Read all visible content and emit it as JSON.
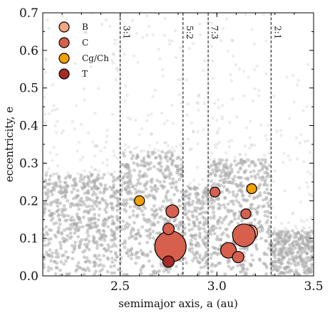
{
  "chart_data": {
    "type": "scatter",
    "xlabel": "semimajor axis, a (au)",
    "ylabel": "eccentricity, e",
    "xlim": [
      2.1,
      3.5
    ],
    "ylim": [
      0.0,
      0.7
    ],
    "xticks": [
      "2.5",
      "3.0",
      "3.5"
    ],
    "yticks": [
      "0.0",
      "0.1",
      "0.2",
      "0.3",
      "0.4",
      "0.5",
      "0.6",
      "0.7"
    ],
    "grid": false,
    "legend_position": "top-left",
    "background_population": {
      "color": "#a9a9a9",
      "note_visible": false
    },
    "resonances": [
      {
        "label": "3:1",
        "a": 2.5
      },
      {
        "label": "5:2",
        "a": 2.825
      },
      {
        "label": "7:3",
        "a": 2.955
      },
      {
        "label": "2:1",
        "a": 3.28
      }
    ],
    "series": [
      {
        "name": "B",
        "color": "#f4a582",
        "points": [
          {
            "a": 3.17,
            "e": 0.115,
            "size": 11
          }
        ]
      },
      {
        "name": "C",
        "color": "#d6604d",
        "points": [
          {
            "a": 2.77,
            "e": 0.172,
            "size": 9
          },
          {
            "a": 2.75,
            "e": 0.125,
            "size": 8
          },
          {
            "a": 2.76,
            "e": 0.078,
            "size": 22
          },
          {
            "a": 2.99,
            "e": 0.223,
            "size": 7
          },
          {
            "a": 3.15,
            "e": 0.165,
            "size": 7
          },
          {
            "a": 3.14,
            "e": 0.108,
            "size": 16
          },
          {
            "a": 3.06,
            "e": 0.068,
            "size": 11
          },
          {
            "a": 3.11,
            "e": 0.05,
            "size": 8
          }
        ]
      },
      {
        "name": "Cg/Ch",
        "color": "#f4a000",
        "points": [
          {
            "a": 2.6,
            "e": 0.2,
            "size": 7
          },
          {
            "a": 3.18,
            "e": 0.232,
            "size": 7
          }
        ]
      },
      {
        "name": "T",
        "color": "#a52a2a",
        "points": [
          {
            "a": 2.75,
            "e": 0.038,
            "size": 8
          }
        ]
      }
    ]
  }
}
